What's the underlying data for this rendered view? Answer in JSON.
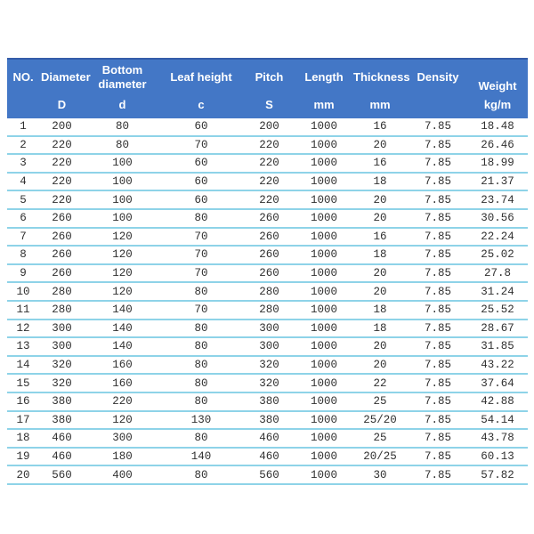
{
  "colors": {
    "header_bg": "#4377c6",
    "header_text": "#ffffff",
    "header_top_border": "#355da9",
    "row_divider": "#8ed3e8",
    "body_text": "#303030",
    "page_bg": "#ffffff"
  },
  "table": {
    "columns": [
      {
        "key": "no",
        "label": "NO.",
        "unit": ""
      },
      {
        "key": "diameter",
        "label": "Diameter",
        "unit": "D"
      },
      {
        "key": "bottom",
        "label": "Bottom diameter",
        "unit": "d"
      },
      {
        "key": "leaf",
        "label": "Leaf height",
        "unit": "c"
      },
      {
        "key": "pitch",
        "label": "Pitch",
        "unit": "S"
      },
      {
        "key": "length",
        "label": "Length",
        "unit": "mm"
      },
      {
        "key": "thickness",
        "label": "Thickness",
        "unit": "mm"
      },
      {
        "key": "density",
        "label": "Density",
        "unit": ""
      },
      {
        "key": "weight",
        "label": "Weight",
        "unit": "kg/m"
      }
    ],
    "rows": [
      [
        "1",
        "200",
        "80",
        "60",
        "200",
        "1000",
        "16",
        "7.85",
        "18.48"
      ],
      [
        "2",
        "220",
        "80",
        "70",
        "220",
        "1000",
        "20",
        "7.85",
        "26.46"
      ],
      [
        "3",
        "220",
        "100",
        "60",
        "220",
        "1000",
        "16",
        "7.85",
        "18.99"
      ],
      [
        "4",
        "220",
        "100",
        "60",
        "220",
        "1000",
        "18",
        "7.85",
        "21.37"
      ],
      [
        "5",
        "220",
        "100",
        "60",
        "220",
        "1000",
        "20",
        "7.85",
        "23.74"
      ],
      [
        "6",
        "260",
        "100",
        "80",
        "260",
        "1000",
        "20",
        "7.85",
        "30.56"
      ],
      [
        "7",
        "260",
        "120",
        "70",
        "260",
        "1000",
        "16",
        "7.85",
        "22.24"
      ],
      [
        "8",
        "260",
        "120",
        "70",
        "260",
        "1000",
        "18",
        "7.85",
        "25.02"
      ],
      [
        "9",
        "260",
        "120",
        "70",
        "260",
        "1000",
        "20",
        "7.85",
        "27.8"
      ],
      [
        "10",
        "280",
        "120",
        "80",
        "280",
        "1000",
        "20",
        "7.85",
        "31.24"
      ],
      [
        "11",
        "280",
        "140",
        "70",
        "280",
        "1000",
        "18",
        "7.85",
        "25.52"
      ],
      [
        "12",
        "300",
        "140",
        "80",
        "300",
        "1000",
        "18",
        "7.85",
        "28.67"
      ],
      [
        "13",
        "300",
        "140",
        "80",
        "300",
        "1000",
        "20",
        "7.85",
        "31.85"
      ],
      [
        "14",
        "320",
        "160",
        "80",
        "320",
        "1000",
        "20",
        "7.85",
        "43.22"
      ],
      [
        "15",
        "320",
        "160",
        "80",
        "320",
        "1000",
        "22",
        "7.85",
        "37.64"
      ],
      [
        "16",
        "380",
        "220",
        "80",
        "380",
        "1000",
        "25",
        "7.85",
        "42.88"
      ],
      [
        "17",
        "380",
        "120",
        "130",
        "380",
        "1000",
        "25/20",
        "7.85",
        "54.14"
      ],
      [
        "18",
        "460",
        "300",
        "80",
        "460",
        "1000",
        "25",
        "7.85",
        "43.78"
      ],
      [
        "19",
        "460",
        "180",
        "140",
        "460",
        "1000",
        "20/25",
        "7.85",
        "60.13"
      ],
      [
        "20",
        "560",
        "400",
        "80",
        "560",
        "1000",
        "30",
        "7.85",
        "57.82"
      ]
    ]
  }
}
